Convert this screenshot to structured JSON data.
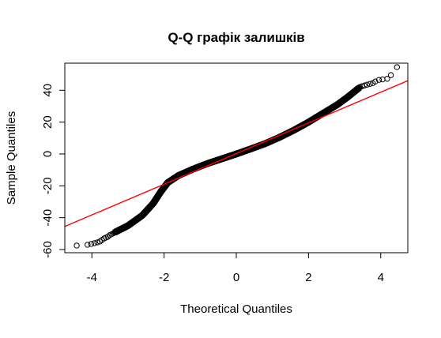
{
  "chart_data": {
    "type": "scatter",
    "title": "Q-Q графік залишків",
    "xlabel": "Theoretical Quantiles",
    "ylabel": "Sample Quantiles",
    "xlim": [
      -4.75,
      4.75
    ],
    "ylim": [
      -62,
      57
    ],
    "x_ticks": [
      -4,
      -2,
      0,
      2,
      4
    ],
    "x_tick_labels": [
      "-4",
      "-2",
      "0",
      "2",
      "4"
    ],
    "y_ticks": [
      -60,
      -40,
      -20,
      0,
      20,
      40
    ],
    "y_tick_labels": [
      "-60",
      "-40",
      "-20",
      "0",
      "20",
      "40"
    ],
    "grid": false,
    "point_style": "open-circle",
    "point_color": "#000000",
    "reference_line": {
      "color": "#ff0000",
      "points": [
        [
          -4.75,
          -45.5
        ],
        [
          4.75,
          46.0
        ]
      ]
    },
    "points": [
      [
        -4.42,
        -57.5
      ],
      [
        -4.12,
        -57.0
      ],
      [
        -4.02,
        -56.5
      ],
      [
        -3.93,
        -56.0
      ],
      [
        -3.85,
        -55.5
      ],
      [
        -3.78,
        -55.0
      ],
      [
        -3.72,
        -54.0
      ],
      [
        -3.66,
        -53.0
      ],
      [
        -3.61,
        -52.5
      ],
      [
        -3.56,
        -52.0
      ],
      [
        -3.51,
        -51.0
      ],
      [
        -3.46,
        -50.5
      ],
      [
        -3.42,
        -50.0
      ],
      [
        -3.38,
        -49.5
      ],
      [
        3.42,
        42.0
      ],
      [
        3.48,
        42.5
      ],
      [
        3.55,
        43.0
      ],
      [
        3.62,
        43.5
      ],
      [
        3.7,
        44.0
      ],
      [
        3.78,
        44.5
      ],
      [
        3.85,
        45.5
      ],
      [
        3.95,
        46.5
      ],
      [
        4.05,
        46.8
      ],
      [
        4.18,
        47.2
      ],
      [
        4.28,
        49.5
      ],
      [
        4.45,
        54.5
      ]
    ],
    "dense_curve": [
      [
        -3.35,
        -49.0
      ],
      [
        -3.0,
        -45.0
      ],
      [
        -2.6,
        -38.5
      ],
      [
        -2.3,
        -31.0
      ],
      [
        -2.1,
        -24.0
      ],
      [
        -1.9,
        -18.0
      ],
      [
        -1.6,
        -13.5
      ],
      [
        -1.2,
        -9.5
      ],
      [
        -0.8,
        -6.0
      ],
      [
        -0.4,
        -3.0
      ],
      [
        0.0,
        0.0
      ],
      [
        0.4,
        3.2
      ],
      [
        0.8,
        6.5
      ],
      [
        1.2,
        10.5
      ],
      [
        1.6,
        15.0
      ],
      [
        2.0,
        20.0
      ],
      [
        2.4,
        25.5
      ],
      [
        2.8,
        31.0
      ],
      [
        3.1,
        36.0
      ],
      [
        3.4,
        41.5
      ]
    ]
  }
}
